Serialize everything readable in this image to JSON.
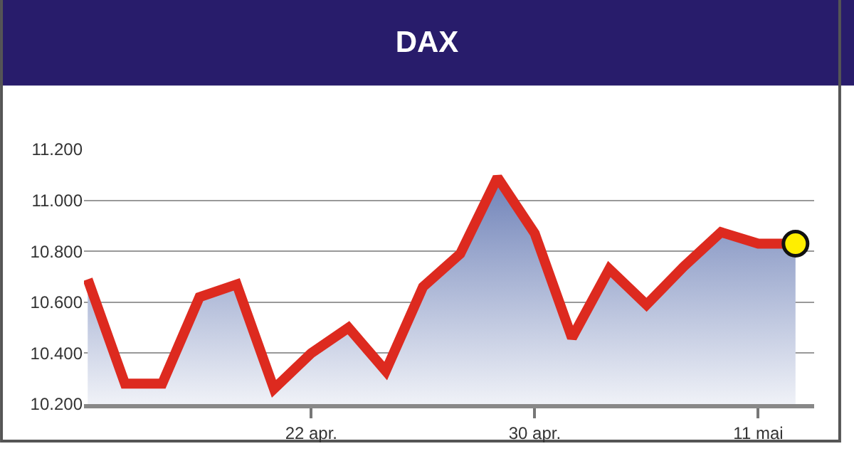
{
  "chart_data": {
    "type": "area",
    "title": "DAX",
    "categories": [
      null,
      null,
      null,
      null,
      null,
      null,
      "22 apr.",
      null,
      null,
      null,
      null,
      null,
      "30 apr.",
      null,
      null,
      null,
      null,
      null,
      "11 mai",
      null
    ],
    "series": [
      {
        "color": "#dd2a1f",
        "values": [
          10690,
          10280,
          10280,
          10620,
          10670,
          10260,
          10400,
          10500,
          10330,
          10660,
          10790,
          11090,
          10870,
          10460,
          10730,
          10590,
          10740,
          10875,
          10830,
          10830
        ]
      },
      {
        "type": "scatter",
        "color": "#ffee00",
        "values": [
          null,
          null,
          null,
          null,
          null,
          null,
          null,
          null,
          null,
          null,
          null,
          null,
          null,
          null,
          null,
          null,
          null,
          null,
          null,
          10830
        ]
      }
    ],
    "ylim": [
      10200,
      11200
    ],
    "yticks": [
      {
        "value": 10200,
        "label": "10.200"
      },
      {
        "value": 10400,
        "label": "10.400"
      },
      {
        "value": 10600,
        "label": "10.600"
      },
      {
        "value": 10800,
        "label": "10.800"
      },
      {
        "value": 11000,
        "label": "11.000"
      },
      {
        "value": 11200,
        "label": "11.200"
      }
    ],
    "grid": "y"
  }
}
